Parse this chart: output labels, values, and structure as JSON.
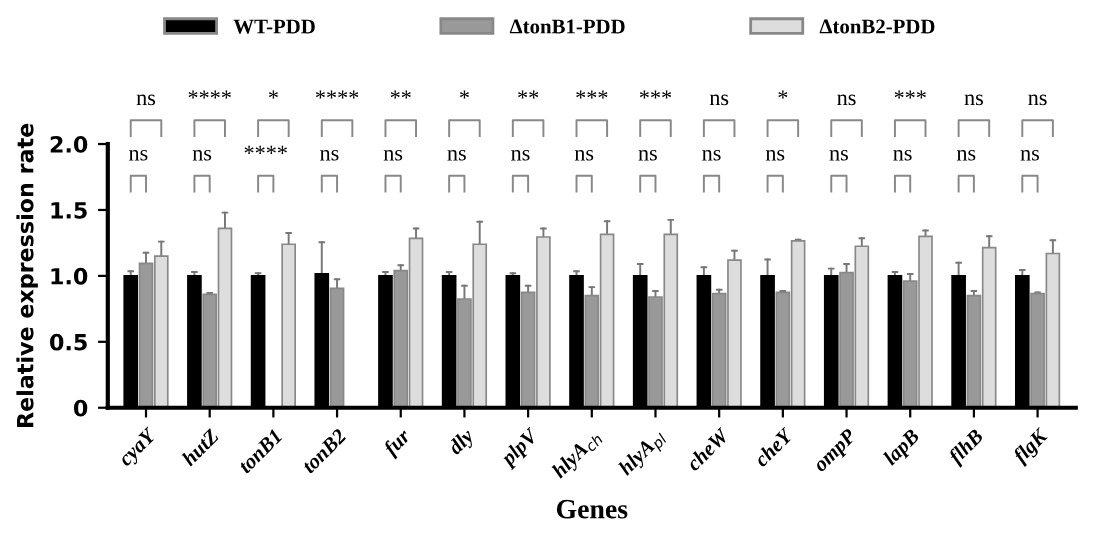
{
  "chart_data": {
    "type": "bar",
    "xlabel": "Genes",
    "ylabel": "Relative expression rate",
    "categories": [
      "cyaY",
      "hutZ",
      "tonB1",
      "tonB2",
      "fur",
      "dly",
      "plpV",
      "hlyA$_{ch}$",
      "hlyA$_{pl}$",
      "cheW",
      "cheY",
      "ompP",
      "lapB",
      "flhB",
      "flgK"
    ],
    "series": [
      {
        "name": "WT-PDD",
        "color": "#000000",
        "values": [
          1.0,
          1.0,
          1.0,
          1.015,
          1.0,
          1.0,
          1.0,
          1.0,
          1.0,
          1.0,
          1.0,
          1.0,
          1.0,
          1.0,
          1.0
        ],
        "errors": [
          [
            1.0,
            1.035
          ],
          [
            1.0,
            1.03
          ],
          [
            1.0,
            1.02
          ],
          [
            1.015,
            1.255
          ],
          [
            1.0,
            1.03
          ],
          [
            1.0,
            1.03
          ],
          [
            1.0,
            1.02
          ],
          [
            1.0,
            1.035
          ],
          [
            1.0,
            1.09
          ],
          [
            1.0,
            1.065
          ],
          [
            1.0,
            1.125
          ],
          [
            1.0,
            1.055
          ],
          [
            1.0,
            1.03
          ],
          [
            1.0,
            1.1
          ],
          [
            1.0,
            1.045
          ]
        ]
      },
      {
        "name": "ΔtonB1-PDD",
        "color": "#999999",
        "values": [
          1.095,
          0.86,
          0,
          0.905,
          1.04,
          0.825,
          0.875,
          0.85,
          0.84,
          0.865,
          0.875,
          1.025,
          0.96,
          0.85,
          0.865
        ],
        "errors": [
          [
            1.095,
            1.175
          ],
          [
            0.86,
            0.87
          ],
          null,
          [
            0.905,
            0.975
          ],
          [
            1.04,
            1.08
          ],
          [
            0.825,
            0.925
          ],
          [
            0.875,
            0.925
          ],
          [
            0.85,
            0.915
          ],
          [
            0.84,
            0.885
          ],
          [
            0.865,
            0.895
          ],
          [
            0.875,
            0.885
          ],
          [
            1.025,
            1.09
          ],
          [
            0.96,
            1.015
          ],
          [
            0.85,
            0.885
          ],
          [
            0.865,
            0.875
          ]
        ]
      },
      {
        "name": "ΔtonB2-PDD",
        "color": "#dddddd",
        "values": [
          1.15,
          1.36,
          1.24,
          0,
          1.285,
          1.24,
          1.295,
          1.315,
          1.315,
          1.12,
          1.265,
          1.225,
          1.3,
          1.215,
          1.17
        ],
        "errors": [
          [
            1.15,
            1.26
          ],
          [
            1.36,
            1.48
          ],
          [
            1.24,
            1.325
          ],
          null,
          [
            1.285,
            1.36
          ],
          [
            1.24,
            1.41
          ],
          [
            1.295,
            1.36
          ],
          [
            1.315,
            1.415
          ],
          [
            1.315,
            1.425
          ],
          [
            1.12,
            1.19
          ],
          [
            1.265,
            1.275
          ],
          [
            1.225,
            1.285
          ],
          [
            1.3,
            1.345
          ],
          [
            1.215,
            1.3
          ],
          [
            1.17,
            1.27
          ]
        ]
      }
    ],
    "ylim": [
      0,
      2.0
    ],
    "yticks": [
      0,
      0.5,
      {
        "value": 1.0,
        "label": "1.0"
      },
      1.5,
      {
        "value": 2.0,
        "label": "2.0"
      }
    ],
    "legend": "top",
    "annotations": [
      "ns",
      "****",
      "*",
      "****",
      "**",
      "*",
      "**",
      "***",
      "***",
      "ns",
      "*",
      "ns",
      "***",
      "ns",
      "ns",
      "ns",
      "ns",
      "****",
      "ns",
      "ns",
      "ns",
      "ns",
      "ns",
      "ns",
      "ns",
      "ns",
      "ns",
      "ns",
      "ns",
      "ns"
    ]
  }
}
